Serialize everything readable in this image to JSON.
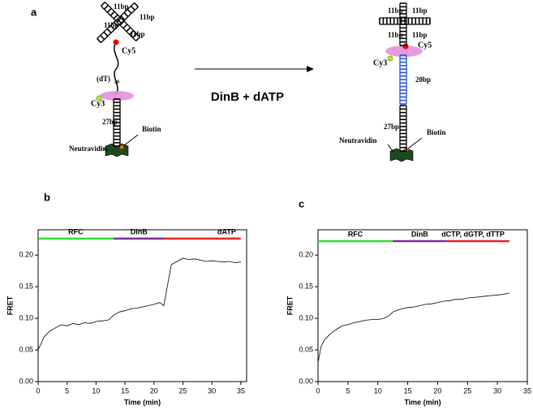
{
  "panels": {
    "a": "a",
    "b": "b",
    "c": "c"
  },
  "diagram": {
    "left_labels": [
      "11bp",
      "11bp",
      "11bp",
      "11bp",
      "Cy5",
      "(dT)",
      "20",
      "Cy3",
      "27bp",
      "Neutravidin",
      "Biotin"
    ],
    "right_labels": [
      "11bp",
      "11bp",
      "11bp",
      "11bp",
      "Cy5",
      "Cy3",
      "20bp",
      "27bp",
      "Neutravidin",
      "Biotin"
    ],
    "arrow_label": "DinB + dATP"
  },
  "chart_data": [
    {
      "type": "line",
      "xlabel": "Time (min)",
      "ylabel": "FRET",
      "color": "#000000",
      "x": [
        0,
        1,
        2,
        3,
        4,
        5,
        6,
        7,
        8,
        9,
        10,
        11,
        12,
        12.5,
        13,
        14,
        15,
        16,
        17,
        18,
        19,
        20,
        21,
        21.7,
        22,
        22.5,
        23,
        24,
        25,
        26,
        27,
        28,
        29,
        30,
        31,
        32,
        33,
        34,
        35
      ],
      "values": [
        0.05,
        0.07,
        0.08,
        0.085,
        0.09,
        0.088,
        0.092,
        0.09,
        0.093,
        0.092,
        0.095,
        0.096,
        0.097,
        0.1,
        0.105,
        0.11,
        0.112,
        0.115,
        0.116,
        0.118,
        0.12,
        0.122,
        0.125,
        0.12,
        0.135,
        0.16,
        0.185,
        0.19,
        0.195,
        0.193,
        0.194,
        0.192,
        0.19,
        0.191,
        0.19,
        0.189,
        0.19,
        0.188,
        0.189
      ],
      "xlim": [
        0,
        36
      ],
      "ylim": [
        0,
        0.24
      ],
      "xticks": [
        0,
        5,
        10,
        15,
        20,
        25,
        30,
        35
      ],
      "yticks": [
        {
          "value": 0,
          "label": "0.00"
        },
        {
          "value": 0.05,
          "label": "0.05"
        },
        {
          "value": 0.1,
          "label": "0.10"
        },
        {
          "value": 0.15,
          "label": "0.15"
        },
        {
          "value": 0.2,
          "label": "0.20"
        }
      ],
      "phase_level": 0.226,
      "phases": [
        {
          "label": "RFC",
          "color": "#33dd33",
          "start": 0,
          "end": 13
        },
        {
          "label": "DinB",
          "color": "#7b2b9b",
          "start": 13,
          "end": 21.8
        },
        {
          "label": "dATP",
          "color": "#ee2222",
          "start": 21.8,
          "end": 35
        }
      ]
    },
    {
      "type": "line",
      "xlabel": "Time (min)",
      "ylabel": "FRET",
      "color": "#000000",
      "x": [
        0,
        0.5,
        1,
        2,
        3,
        4,
        5,
        6,
        7,
        8,
        9,
        10,
        11,
        12,
        12.5,
        13,
        14,
        15,
        16,
        17,
        18,
        19,
        20,
        21,
        22,
        23,
        24,
        25,
        26,
        27,
        28,
        29,
        30,
        31,
        32
      ],
      "values": [
        0.03,
        0.055,
        0.065,
        0.075,
        0.082,
        0.088,
        0.09,
        0.093,
        0.095,
        0.097,
        0.098,
        0.098,
        0.1,
        0.105,
        0.11,
        0.112,
        0.115,
        0.117,
        0.118,
        0.12,
        0.122,
        0.123,
        0.125,
        0.127,
        0.128,
        0.13,
        0.13,
        0.132,
        0.133,
        0.134,
        0.135,
        0.136,
        0.137,
        0.138,
        0.14
      ],
      "xlim": [
        0,
        35
      ],
      "ylim": [
        0,
        0.24
      ],
      "xticks": [
        0,
        5,
        10,
        15,
        20,
        25,
        30,
        35
      ],
      "yticks": [
        {
          "value": 0,
          "label": "0.00"
        },
        {
          "value": 0.05,
          "label": "0.05"
        },
        {
          "value": 0.1,
          "label": "0.10"
        },
        {
          "value": 0.15,
          "label": "0.15"
        },
        {
          "value": 0.2,
          "label": "0.20"
        }
      ],
      "phase_level": 0.222,
      "phases": [
        {
          "label": "RFC",
          "color": "#33dd33",
          "start": 0,
          "end": 12.5
        },
        {
          "label": "DinB",
          "color": "#7b2b9b",
          "start": 12.5,
          "end": 21.5
        },
        {
          "label": "dCTP, dGTP, dTTP",
          "color": "#ee2222",
          "start": 21.5,
          "end": 32
        }
      ]
    }
  ]
}
